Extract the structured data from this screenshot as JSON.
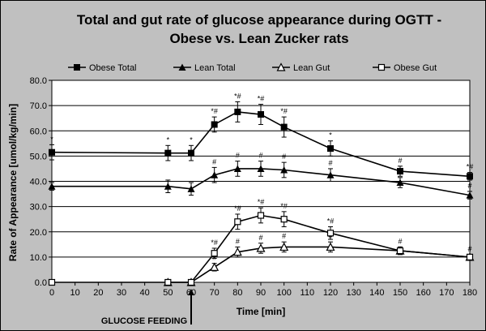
{
  "chart_data": {
    "type": "line",
    "title_line1": "Total and gut rate of glucose appearance during OGTT -",
    "title_line2": "Obese vs. Lean Zucker rats",
    "xlabel": "Time [min]",
    "ylabel": "Rate of Appearance [umol/kg/min]",
    "xlim": [
      0,
      180
    ],
    "ylim": [
      0,
      80
    ],
    "x_ticks": [
      0,
      10,
      20,
      30,
      40,
      50,
      60,
      70,
      80,
      90,
      100,
      110,
      120,
      130,
      140,
      150,
      160,
      170,
      180
    ],
    "y_ticks": [
      0,
      10,
      20,
      30,
      40,
      50,
      60,
      70,
      80
    ],
    "y_tick_labels": [
      "0.0",
      "10.0",
      "20.0",
      "30.0",
      "40.0",
      "50.0",
      "60.0",
      "70.0",
      "80.0"
    ],
    "grid": "horizontal",
    "legend_position": "top",
    "annotation": "GLUCOSE FEEDING",
    "annotation_x": 60,
    "series": [
      {
        "name": "Obese Total",
        "marker": "filled-square",
        "x": [
          0,
          50,
          60,
          70,
          80,
          90,
          100,
          120,
          150,
          180
        ],
        "y": [
          51.5,
          51.2,
          51.2,
          62.5,
          67.5,
          66.5,
          61.5,
          53.0,
          44.0,
          42.0
        ],
        "err": [
          3.0,
          3.0,
          3.0,
          3.0,
          4.0,
          4.0,
          4.0,
          3.0,
          2.0,
          1.5
        ],
        "labels": [
          "*",
          "*",
          "*",
          "*#",
          "*#",
          "*#",
          "*#",
          "*",
          "#",
          "*#"
        ]
      },
      {
        "name": "Lean Total",
        "marker": "filled-triangle",
        "x": [
          0,
          50,
          60,
          70,
          80,
          90,
          100,
          120,
          150,
          180
        ],
        "y": [
          38.0,
          38.0,
          37.0,
          42.5,
          45.0,
          45.0,
          44.5,
          42.5,
          39.5,
          34.5
        ],
        "err": [
          1.5,
          2.5,
          2.5,
          3.0,
          3.0,
          3.0,
          3.0,
          2.5,
          2.0,
          1.5
        ],
        "labels": [
          "",
          "",
          "",
          "#",
          "#",
          "#",
          "#",
          "#",
          "",
          "#"
        ]
      },
      {
        "name": "Lean Gut",
        "marker": "open-triangle",
        "x": [
          50,
          60,
          70,
          80,
          90,
          100,
          120,
          150,
          180
        ],
        "y": [
          0.0,
          0.0,
          6.0,
          12.0,
          13.5,
          14.0,
          14.0,
          12.5,
          10.0
        ],
        "err": [
          0,
          0,
          1.5,
          2.0,
          2.0,
          2.0,
          2.0,
          1.5,
          1.0
        ],
        "labels": [
          "",
          "",
          "#",
          "#",
          "#",
          "#",
          "#",
          "#",
          "#"
        ]
      },
      {
        "name": "Obese Gut",
        "marker": "open-square",
        "x": [
          0,
          50,
          60,
          70,
          80,
          90,
          100,
          120,
          150,
          180
        ],
        "y": [
          0.0,
          0.0,
          0.0,
          11.5,
          24.0,
          26.5,
          25.0,
          19.5,
          12.5,
          10.0
        ],
        "err": [
          0,
          0,
          0,
          2.0,
          3.0,
          3.0,
          3.0,
          2.5,
          1.5,
          1.0
        ],
        "labels": [
          "",
          "",
          "",
          "*#",
          "*#",
          "*#",
          "*#",
          "*#",
          "",
          ""
        ]
      }
    ]
  }
}
